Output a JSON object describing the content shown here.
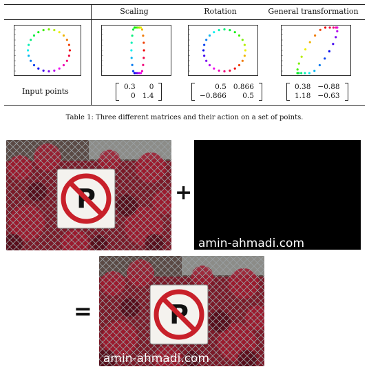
{
  "table": {
    "headers": [
      "Scaling",
      "Rotation",
      "General transformation"
    ],
    "row_label": "Input points",
    "matrices": [
      {
        "name": "scaling",
        "rows": [
          [
            "0.3",
            "0"
          ],
          [
            "0",
            "1.4"
          ]
        ],
        "a": 0.3,
        "b": 0,
        "c": 0,
        "d": 1.4
      },
      {
        "name": "rotation",
        "rows": [
          [
            "0.5",
            "0.866"
          ],
          [
            "−0.866",
            "0.5"
          ]
        ],
        "a": 0.5,
        "b": 0.866,
        "c": -0.866,
        "d": 0.5
      },
      {
        "name": "general",
        "rows": [
          [
            "0.38",
            "−0.88"
          ],
          [
            "1.18",
            "−0.63"
          ]
        ],
        "a": 0.38,
        "b": -0.88,
        "c": 1.18,
        "d": -0.63
      }
    ],
    "caption": "Table 1: Three different matrices and their action on a set of points.",
    "num_points": 24
  },
  "images": {
    "plus": "+",
    "equals": "=",
    "watermark_text": "amin-ahmadi.com",
    "sign_letter": "P"
  },
  "colors": {
    "sign_red": "#c8202a",
    "foliage": "#6e1424",
    "black_panel": "#000000"
  }
}
